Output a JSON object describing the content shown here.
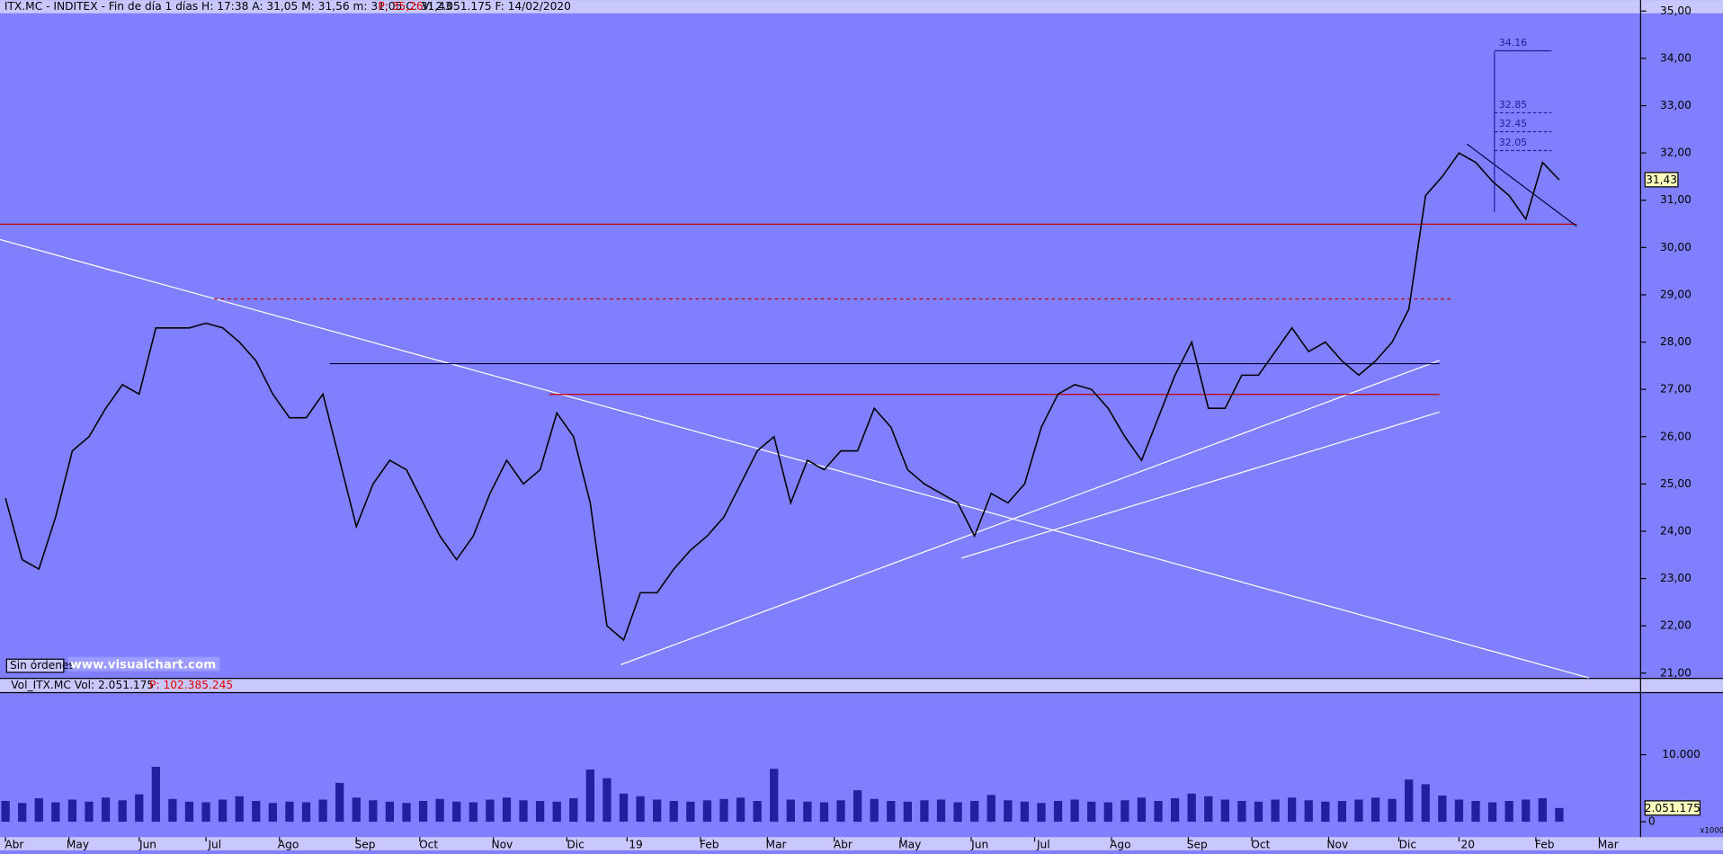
{
  "chart_data": {
    "type": "line",
    "header": [
      "ITX.MC - INDITEX - Fin de día 1 días  H: 17:38  A: 31,05  M: 31,56  m: 31,05  C: 31,43",
      "P: 35,26",
      "V: 2.051.175  F: 14/02/2020"
    ],
    "status": "Sin órdenes",
    "watermark": "www.visualchart.com",
    "color": "#000000",
    "x": [
      0,
      5,
      10,
      15,
      20,
      25,
      30,
      35,
      40,
      45,
      50,
      55,
      60,
      65,
      70,
      75,
      80,
      85,
      90,
      95,
      100,
      105,
      110,
      115,
      120,
      125,
      130,
      135,
      140,
      145,
      150,
      155,
      160,
      165,
      170,
      175,
      180,
      185,
      190,
      195,
      200,
      205,
      210,
      215,
      220,
      225,
      230,
      235,
      240,
      245,
      250,
      255,
      260,
      265,
      270,
      275,
      280,
      285,
      290,
      295,
      300,
      305,
      310,
      315,
      320,
      325,
      330,
      335,
      340,
      345,
      350,
      355,
      360,
      365,
      370,
      375,
      380,
      385,
      390,
      395,
      400,
      405,
      410,
      415,
      420,
      425,
      430,
      435,
      440,
      445,
      450,
      455,
      460,
      465
    ],
    "values": [
      24.7,
      23.4,
      23.2,
      24.3,
      25.7,
      26.0,
      26.6,
      27.1,
      26.9,
      28.3,
      28.3,
      28.3,
      28.4,
      28.3,
      28.0,
      27.6,
      26.9,
      26.4,
      26.4,
      26.9,
      25.5,
      24.1,
      25.0,
      25.5,
      25.3,
      24.6,
      23.9,
      23.4,
      23.9,
      24.8,
      25.5,
      25.0,
      25.3,
      26.5,
      26.0,
      24.6,
      22.0,
      21.7,
      22.7,
      22.7,
      23.2,
      23.6,
      23.9,
      24.3,
      25.0,
      25.7,
      26.0,
      24.6,
      25.5,
      25.3,
      25.7,
      25.7,
      26.6,
      26.2,
      25.3,
      25.0,
      24.8,
      24.6,
      23.9,
      24.8,
      24.6,
      25.0,
      26.2,
      26.9,
      27.1,
      27.0,
      26.6,
      26.0,
      25.5,
      26.4,
      27.3,
      28.0,
      26.6,
      26.6,
      27.3,
      27.3,
      27.8,
      28.3,
      27.8,
      28.0,
      27.6,
      27.3,
      27.6,
      28.0,
      28.7,
      31.1,
      31.5,
      32.0,
      31.8,
      31.4,
      31.1,
      30.6,
      31.8,
      31.43
    ],
    "last_label": "31,43",
    "xlim": [
      0,
      490
    ],
    "xticks": [
      {
        "value": 0,
        "label": "Abr"
      },
      {
        "value": 19,
        "label": "May"
      },
      {
        "value": 40,
        "label": "Jun"
      },
      {
        "value": 60,
        "label": "Jul"
      },
      {
        "value": 82,
        "label": "Ago"
      },
      {
        "value": 105,
        "label": "Sep"
      },
      {
        "value": 124,
        "label": "Oct"
      },
      {
        "value": 146,
        "label": "Nov"
      },
      {
        "value": 168,
        "label": "Dic"
      },
      {
        "value": 186,
        "label": "19"
      },
      {
        "value": 208,
        "label": "Feb"
      },
      {
        "value": 228,
        "label": "Mar"
      },
      {
        "value": 248,
        "label": "Abr"
      },
      {
        "value": 268,
        "label": "May"
      },
      {
        "value": 289,
        "label": "Jun"
      },
      {
        "value": 308,
        "label": "Jul"
      },
      {
        "value": 331,
        "label": "Ago"
      },
      {
        "value": 354,
        "label": "Sep"
      },
      {
        "value": 373,
        "label": "Oct"
      },
      {
        "value": 396,
        "label": "Nov"
      },
      {
        "value": 417,
        "label": "Dic"
      },
      {
        "value": 435,
        "label": "20"
      },
      {
        "value": 458,
        "label": "Feb"
      },
      {
        "value": 477,
        "label": "Mar"
      }
    ],
    "ylim": [
      20.9,
      35
    ],
    "yticks": [
      {
        "value": 21,
        "label": "21,00"
      },
      {
        "value": 22,
        "label": "22,00"
      },
      {
        "value": 23,
        "label": "23,00"
      },
      {
        "value": 24,
        "label": "24,00"
      },
      {
        "value": 25,
        "label": "25,00"
      },
      {
        "value": 26,
        "label": "26,00"
      },
      {
        "value": 27,
        "label": "27,00"
      },
      {
        "value": 28,
        "label": "28,00"
      },
      {
        "value": 29,
        "label": "29,00"
      },
      {
        "value": 30,
        "label": "30,00"
      },
      {
        "value": 31,
        "label": "31,00"
      },
      {
        "value": 32,
        "label": "32,00"
      },
      {
        "value": 33,
        "label": "33,00"
      },
      {
        "value": 34,
        "label": "34,00"
      },
      {
        "value": 35,
        "label": "35,00"
      }
    ],
    "levels": [
      34.16,
      32.85,
      32.45,
      32.05
    ],
    "volume": {
      "header": "Vol_ITX.MC  Vol: 2.051.175",
      "header_p": "P: 102.385.245",
      "color": "#2020a0",
      "values": [
        3100,
        2800,
        3500,
        2900,
        3300,
        3000,
        3600,
        3200,
        4100,
        8200,
        3400,
        3000,
        2900,
        3300,
        3800,
        3100,
        2800,
        3000,
        2900,
        3300,
        5800,
        3600,
        3200,
        3000,
        2800,
        3100,
        3400,
        3000,
        2900,
        3300,
        3600,
        3200,
        3100,
        3000,
        3500,
        7800,
        6500,
        4200,
        3800,
        3300,
        3100,
        3000,
        3200,
        3400,
        3600,
        3100,
        7900,
        3300,
        3000,
        2900,
        3200,
        4700,
        3400,
        3100,
        3000,
        3200,
        3300,
        2900,
        3100,
        4000,
        3200,
        3000,
        2800,
        3100,
        3300,
        3000,
        2900,
        3200,
        3600,
        3100,
        3500,
        4200,
        3800,
        3300,
        3100,
        3000,
        3300,
        3600,
        3200,
        3000,
        3100,
        3300,
        3600,
        3400,
        6300,
        5600,
        3900,
        3300,
        3100,
        2900,
        3100,
        3300,
        3500,
        2051.175
      ],
      "last_label": "2.051.175",
      "unit": "x1000",
      "ylim": [
        0,
        19340
      ],
      "yticks": [
        {
          "value": 10000,
          "label": "10.000"
        },
        0
      ]
    }
  }
}
